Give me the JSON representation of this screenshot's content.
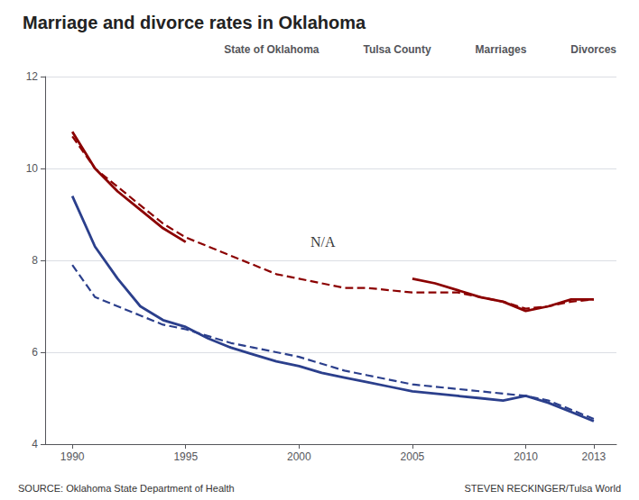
{
  "chart_data": {
    "type": "line",
    "title": "Marriage and divorce rates in Oklahoma",
    "x": [
      1990,
      1991,
      1992,
      1993,
      1994,
      1995,
      1996,
      1997,
      1998,
      1999,
      2000,
      2001,
      2002,
      2003,
      2004,
      2005,
      2006,
      2007,
      2008,
      2009,
      2010,
      2011,
      2012,
      2013
    ],
    "series": [
      {
        "color": "#8b0000",
        "line_style": "dashed",
        "values": [
          10.7,
          10.0,
          9.6,
          9.2,
          8.8,
          8.5,
          8.3,
          8.1,
          7.9,
          7.7,
          7.6,
          7.5,
          7.4,
          7.4,
          7.35,
          7.3,
          7.3,
          7.3,
          7.2,
          7.1,
          6.95,
          7.0,
          7.1,
          7.15
        ]
      },
      {
        "color": "#8b0000",
        "line_style": "solid",
        "values": [
          10.8,
          10.0,
          9.5,
          9.1,
          8.7,
          8.4,
          null,
          null,
          null,
          null,
          null,
          null,
          null,
          null,
          null,
          7.6,
          7.5,
          7.35,
          7.2,
          7.1,
          6.9,
          7.0,
          7.15,
          7.15
        ]
      },
      {
        "color": "#2b3f8c",
        "line_style": "dashed",
        "values": [
          7.9,
          7.2,
          7.0,
          6.8,
          6.6,
          6.5,
          6.35,
          6.2,
          6.1,
          6.0,
          5.9,
          5.75,
          5.6,
          5.5,
          5.4,
          5.3,
          5.25,
          5.2,
          5.15,
          5.1,
          5.05,
          4.95,
          4.75,
          4.55
        ]
      },
      {
        "color": "#2b3f8c",
        "line_style": "solid",
        "values": [
          9.4,
          8.3,
          7.6,
          7.0,
          6.7,
          6.55,
          6.3,
          6.1,
          5.95,
          5.8,
          5.7,
          5.55,
          5.45,
          5.35,
          5.25,
          5.15,
          5.1,
          5.05,
          5.0,
          4.95,
          5.05,
          4.9,
          4.7,
          4.5
        ]
      }
    ],
    "xlim": [
      1988.8,
      2014.0
    ],
    "xticks": [
      1990,
      1995,
      2000,
      2005,
      2010,
      2013
    ],
    "ylim": [
      4,
      12
    ],
    "yticks": [
      4,
      6,
      8,
      10,
      12
    ],
    "grid": true,
    "legend": "upper right",
    "legend_entries": [
      {
        "name": "State of Oklahoma",
        "color": "#333333",
        "line_style": "dotted"
      },
      {
        "name": "Tulsa County",
        "color": "#333333",
        "line_style": "solid"
      },
      {
        "name": "Marriages",
        "color": "#8b0000",
        "line_style": "solid"
      },
      {
        "name": "Divorces",
        "color": "#2b3f8c",
        "line_style": "solid"
      }
    ],
    "annotations": [
      {
        "text": "N/A",
        "x": 2000.5,
        "y": 8.25
      }
    ],
    "sources": [
      "SOURCE: Oklahoma State Department of Health",
      "STEVEN RECKINGER/Tulsa World"
    ]
  }
}
